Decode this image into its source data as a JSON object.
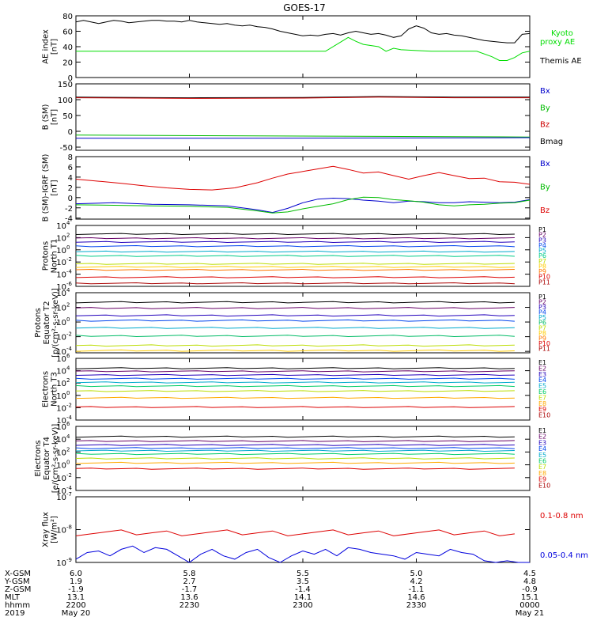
{
  "title": "GOES-17",
  "chart_data": [
    {
      "type": "line",
      "id": "ae",
      "ylabel": [
        "AE index",
        "[nT]"
      ],
      "ylim": [
        0,
        80
      ],
      "yticks": [
        [
          0,
          "0"
        ],
        [
          20,
          "20"
        ],
        [
          40,
          "40"
        ],
        [
          60,
          "60"
        ],
        [
          80,
          "80"
        ]
      ],
      "log": false,
      "series": [
        {
          "name": "Themis AE",
          "color": "#000000",
          "t": [
            0,
            2,
            4,
            6,
            8,
            10,
            12,
            14,
            16,
            18,
            20,
            22,
            24,
            26,
            28,
            30,
            32,
            34,
            36,
            38,
            40,
            42,
            44,
            46,
            48,
            50,
            52,
            54,
            56,
            58,
            60,
            62,
            64,
            66,
            68,
            70,
            72,
            74,
            76,
            78,
            80,
            82,
            84,
            86,
            88,
            90,
            92,
            94,
            96,
            98,
            100,
            102,
            104,
            106,
            108,
            110,
            112,
            114,
            116,
            118,
            120
          ],
          "v": [
            72,
            74,
            72,
            70,
            72,
            74,
            73,
            71,
            72,
            73,
            74,
            74,
            73,
            73,
            72,
            74,
            72,
            71,
            70,
            69,
            70,
            68,
            67,
            68,
            66,
            65,
            63,
            60,
            58,
            56,
            54,
            55,
            54,
            56,
            57,
            55,
            58,
            60,
            58,
            56,
            57,
            55,
            52,
            54,
            63,
            67,
            64,
            58,
            56,
            57,
            55,
            54,
            52,
            50,
            48,
            47,
            46,
            45,
            45,
            56,
            57
          ]
        },
        {
          "name": "Kyoto proxy AE",
          "color": "#00dd00",
          "t": [
            0,
            66,
            70,
            72,
            74,
            76,
            80,
            82,
            84,
            86,
            90,
            94,
            98,
            102,
            106,
            110,
            112,
            114,
            116,
            118,
            120
          ],
          "v": [
            34,
            34,
            46,
            52,
            47,
            43,
            40,
            34,
            38,
            36,
            35,
            34,
            34,
            34,
            34,
            27,
            22,
            22,
            26,
            32,
            34
          ]
        }
      ],
      "legend": [
        "Kyoto proxy AE",
        "Themis AE"
      ]
    },
    {
      "type": "line",
      "id": "bsm",
      "ylabel": [
        "B (SM)",
        "[nT]"
      ],
      "ylim": [
        -60,
        150
      ],
      "yticks": [
        [
          -50,
          "-50"
        ],
        [
          0,
          "0"
        ],
        [
          50,
          "50"
        ],
        [
          100,
          "100"
        ],
        [
          150,
          "150"
        ]
      ],
      "log": false,
      "series": [
        {
          "name": "Bmag",
          "color": "#000000",
          "t": [
            0,
            30,
            60,
            80,
            100,
            120
          ],
          "v": [
            108,
            106,
            107,
            110,
            108,
            108
          ]
        },
        {
          "name": "Bz",
          "color": "#cc0000",
          "t": [
            0,
            30,
            60,
            80,
            100,
            120
          ],
          "v": [
            106,
            104,
            105,
            108,
            106,
            106
          ]
        },
        {
          "name": "By",
          "color": "#00bb00",
          "t": [
            0,
            40,
            80,
            120
          ],
          "v": [
            -12,
            -14,
            -16,
            -18
          ]
        },
        {
          "name": "Bx",
          "color": "#0000cc",
          "t": [
            0,
            40,
            80,
            120
          ],
          "v": [
            -22,
            -22,
            -21,
            -20
          ]
        }
      ],
      "legend": [
        "Bx",
        "By",
        "Bz",
        "Bmag"
      ]
    },
    {
      "type": "line",
      "id": "bigrf",
      "ylabel": [
        "B (SM)-IGRF (SM)",
        "[nT]"
      ],
      "ylim": [
        -4.2,
        8
      ],
      "yticks": [
        [
          -4,
          "-4"
        ],
        [
          -2,
          "-2"
        ],
        [
          0,
          "0"
        ],
        [
          2,
          "2"
        ],
        [
          4,
          "4"
        ],
        [
          6,
          "6"
        ],
        [
          8,
          "8"
        ]
      ],
      "log": false,
      "series": [
        {
          "name": "Bz",
          "color": "#dd0000",
          "t": [
            0,
            6,
            12,
            18,
            24,
            30,
            36,
            42,
            48,
            52,
            56,
            60,
            64,
            68,
            72,
            76,
            80,
            84,
            88,
            92,
            96,
            100,
            104,
            108,
            112,
            116,
            120
          ],
          "v": [
            3.6,
            3.2,
            2.8,
            2.3,
            1.9,
            1.6,
            1.5,
            1.9,
            2.9,
            3.8,
            4.6,
            5.1,
            5.6,
            6.1,
            5.5,
            4.8,
            5.0,
            4.3,
            3.6,
            4.3,
            4.9,
            4.3,
            3.7,
            3.8,
            3.1,
            3.0,
            2.6
          ]
        },
        {
          "name": "Bx",
          "color": "#0000cc",
          "t": [
            0,
            10,
            20,
            30,
            40,
            48,
            52,
            56,
            60,
            64,
            68,
            72,
            76,
            80,
            84,
            88,
            92,
            96,
            100,
            104,
            108,
            112,
            116,
            120
          ],
          "v": [
            -1.2,
            -1.0,
            -1.3,
            -1.4,
            -1.6,
            -2.4,
            -2.9,
            -2.1,
            -1.0,
            -0.3,
            -0.1,
            -0.2,
            -0.5,
            -0.7,
            -1.0,
            -0.7,
            -0.8,
            -1.0,
            -1.0,
            -0.8,
            -0.9,
            -1.0,
            -0.9,
            -0.4
          ]
        },
        {
          "name": "By",
          "color": "#00bb00",
          "t": [
            0,
            10,
            20,
            30,
            40,
            48,
            52,
            56,
            60,
            64,
            68,
            72,
            76,
            80,
            84,
            88,
            92,
            96,
            100,
            104,
            108,
            112,
            116,
            120
          ],
          "v": [
            -1.4,
            -1.5,
            -1.6,
            -1.7,
            -1.9,
            -2.6,
            -3.0,
            -2.8,
            -2.2,
            -1.7,
            -1.2,
            -0.4,
            0.1,
            0.0,
            -0.4,
            -0.6,
            -0.9,
            -1.4,
            -1.6,
            -1.4,
            -1.3,
            -1.1,
            -1.0,
            -0.5
          ]
        }
      ],
      "legend": [
        "Bx",
        "By",
        "Bz"
      ]
    },
    {
      "type": "line",
      "id": "pn",
      "ylabel": [
        "Protons",
        "North T1"
      ],
      "ylim": [
        -6,
        4
      ],
      "yticks": [
        [
          -6,
          "10",
          "-6"
        ],
        [
          -4,
          "10",
          "-4"
        ],
        [
          -2,
          "10",
          "-2"
        ],
        [
          0,
          "10",
          "0"
        ],
        [
          2,
          "10",
          "2"
        ],
        [
          4,
          "10",
          "4"
        ]
      ],
      "log": true,
      "series": [
        {
          "name": "P1",
          "color": "#000000",
          "level": 2.6
        },
        {
          "name": "P2",
          "color": "#660066",
          "level": 1.9
        },
        {
          "name": "P3",
          "color": "#2200bb",
          "level": 1.3
        },
        {
          "name": "P4",
          "color": "#0044ee",
          "level": 0.6
        },
        {
          "name": "P5",
          "color": "#00aacc",
          "level": -0.3
        },
        {
          "name": "P6",
          "color": "#00cc88",
          "level": -1.0
        },
        {
          "name": "P7",
          "color": "#bbdd00",
          "level": -2.3
        },
        {
          "name": "P8",
          "color": "#ffcc00",
          "level": -2.8
        },
        {
          "name": "P9",
          "color": "#ff7700",
          "level": -3.3
        },
        {
          "name": "P10",
          "color": "#dd0000",
          "level": -4.5
        },
        {
          "name": "P11",
          "color": "#aa0000",
          "level": -5.5
        }
      ],
      "legend": [
        "P1",
        "P2",
        "P3",
        "P4",
        "P5",
        "P6",
        "P7",
        "P8",
        "P9",
        "P10",
        "P11"
      ]
    },
    {
      "type": "line",
      "id": "pe",
      "ylabel": [
        "Protons",
        "Equator T2",
        "[p/(cm²-s-sr-keV)]"
      ],
      "ylim": [
        -4.2,
        4
      ],
      "yticks": [
        [
          -4,
          "10",
          "-4"
        ],
        [
          -2,
          "10",
          "-2"
        ],
        [
          0,
          "10",
          "0"
        ],
        [
          2,
          "10",
          "2"
        ],
        [
          4,
          "10",
          "4"
        ]
      ],
      "log": true,
      "series": [
        {
          "name": "P1",
          "color": "#000000",
          "level": 2.7
        },
        {
          "name": "P2",
          "color": "#660066",
          "level": 1.9
        },
        {
          "name": "P3",
          "color": "#2200bb",
          "level": 0.9
        },
        {
          "name": "P4",
          "color": "#0044ee",
          "level": 0.2
        },
        {
          "name": "P5",
          "color": "#00aacc",
          "level": -0.8
        },
        {
          "name": "P6",
          "color": "#00bb66",
          "level": -1.9
        },
        {
          "name": "P7",
          "color": "#bbdd00",
          "level": -3.2
        },
        {
          "name": "P8",
          "color": "#ffcc00",
          "level": -3.9
        }
      ],
      "legend": [
        "P1",
        "P2",
        "P3",
        "P4",
        "P5",
        "P6",
        "P7",
        "P8",
        "P9",
        "P10",
        "P11"
      ],
      "legend_colors": [
        "#000000",
        "#660066",
        "#2200bb",
        "#0044ee",
        "#00aacc",
        "#00bb66",
        "#bbdd00",
        "#ffcc00",
        "#ff7700",
        "#dd0000",
        "#aa0000"
      ]
    },
    {
      "type": "line",
      "id": "en",
      "ylabel": [
        "Electrons",
        "North T3"
      ],
      "ylim": [
        -4,
        6
      ],
      "yticks": [
        [
          -4,
          "10",
          "-4"
        ],
        [
          -2,
          "10",
          "-2"
        ],
        [
          0,
          "10",
          "0"
        ],
        [
          2,
          "10",
          "2"
        ],
        [
          4,
          "10",
          "4"
        ],
        [
          6,
          "10",
          "6"
        ]
      ],
      "log": true,
      "series": [
        {
          "name": "E1",
          "color": "#000000",
          "level": 4.4
        },
        {
          "name": "E2",
          "color": "#660066",
          "level": 3.9
        },
        {
          "name": "E3",
          "color": "#2200bb",
          "level": 3.3
        },
        {
          "name": "E4",
          "color": "#0044ee",
          "level": 2.7
        },
        {
          "name": "E5",
          "color": "#00aacc",
          "level": 2.1
        },
        {
          "name": "E6",
          "color": "#00cc66",
          "level": 1.5
        },
        {
          "name": "E7",
          "color": "#bbdd00",
          "level": 0.7
        },
        {
          "name": "E8",
          "color": "#ffaa00",
          "level": -0.4
        },
        {
          "name": "E9",
          "color": "#dd0000",
          "level": -1.9
        }
      ],
      "legend": [
        "E1",
        "E2",
        "E3",
        "E4",
        "E5",
        "E6",
        "E7",
        "E8",
        "E9",
        "E10"
      ],
      "legend_colors": [
        "#000000",
        "#660066",
        "#2200bb",
        "#0044ee",
        "#00aacc",
        "#00cc66",
        "#bbdd00",
        "#ffaa00",
        "#dd0000",
        "#aa0000"
      ]
    },
    {
      "type": "line",
      "id": "ee",
      "ylabel": [
        "Electrons",
        "Equator T4",
        "[e/(cm²-s-sr-keV)]"
      ],
      "ylim": [
        -4,
        6
      ],
      "yticks": [
        [
          -4,
          "10",
          "-4"
        ],
        [
          -2,
          "10",
          "-2"
        ],
        [
          0,
          "10",
          "0"
        ],
        [
          2,
          "10",
          "2"
        ],
        [
          4,
          "10",
          "4"
        ],
        [
          6,
          "10",
          "6"
        ]
      ],
      "log": true,
      "series": [
        {
          "name": "E1",
          "color": "#000000",
          "level": 4.4
        },
        {
          "name": "E2",
          "color": "#660066",
          "level": 3.7
        },
        {
          "name": "E3",
          "color": "#2200bb",
          "level": 3.1
        },
        {
          "name": "E4",
          "color": "#0044ee",
          "level": 2.6
        },
        {
          "name": "E5",
          "color": "#00aacc",
          "level": 2.2
        },
        {
          "name": "E6",
          "color": "#00cc66",
          "level": 1.7
        },
        {
          "name": "E7",
          "color": "#bbdd00",
          "level": 1.0
        },
        {
          "name": "E8",
          "color": "#ffaa00",
          "level": 0.3
        },
        {
          "name": "E9",
          "color": "#dd0000",
          "level": -0.6
        }
      ],
      "legend": [
        "E1",
        "E2",
        "E3",
        "E4",
        "E5",
        "E6",
        "E7",
        "E8",
        "E9",
        "E10"
      ],
      "legend_colors": [
        "#000000",
        "#660066",
        "#2200bb",
        "#0044ee",
        "#00aacc",
        "#00cc66",
        "#bbdd00",
        "#ffaa00",
        "#dd0000",
        "#aa0000"
      ]
    },
    {
      "type": "line",
      "id": "xray",
      "ylabel": [
        "Xray flux",
        "[W/m²]"
      ],
      "ylim": [
        -9,
        -7
      ],
      "yticks": [
        [
          -9,
          "10",
          "-9"
        ],
        [
          -8,
          "10",
          "-8"
        ],
        [
          -7,
          "10",
          "-7"
        ]
      ],
      "log": true,
      "series": [
        {
          "name": "0.1-0.8 nm",
          "color": "#dd0000",
          "level": -8.1
        },
        {
          "name": "0.05-0.4 nm",
          "color": "#0000dd",
          "t": [
            0,
            3,
            6,
            9,
            12,
            15,
            18,
            21,
            24,
            27,
            30,
            33,
            36,
            39,
            42,
            45,
            48,
            51,
            54,
            57,
            60,
            63,
            66,
            69,
            72,
            75,
            78,
            81,
            84,
            87,
            90,
            93,
            96,
            99,
            102,
            105,
            108,
            111,
            114,
            117,
            120
          ],
          "v": [
            -8.9,
            -8.7,
            -8.65,
            -8.8,
            -8.6,
            -8.5,
            -8.7,
            -8.55,
            -8.6,
            -8.8,
            -9.0,
            -8.75,
            -8.6,
            -8.8,
            -8.9,
            -8.7,
            -8.6,
            -8.85,
            -9.0,
            -8.8,
            -8.65,
            -8.75,
            -8.6,
            -8.8,
            -8.55,
            -8.6,
            -8.7,
            -8.75,
            -8.8,
            -8.9,
            -8.7,
            -8.75,
            -8.8,
            -8.6,
            -8.7,
            -8.75,
            -8.95,
            -9.0,
            -8.95,
            -9.0,
            -9.0
          ]
        }
      ],
      "legend": [
        "0.1-0.8 nm",
        "0.05-0.4 nm"
      ]
    }
  ],
  "footer": {
    "row_labels": [
      "X-GSM",
      "Y-GSM",
      "Z-GSM",
      "MLT",
      "hhmm",
      "2019"
    ],
    "columns": [
      [
        "6.0",
        "1.9",
        "-1.9",
        "13.1",
        "2200",
        "May 20"
      ],
      [
        "5.8",
        "2.7",
        "-1.7",
        "13.6",
        "2230",
        ""
      ],
      [
        "5.5",
        "3.5",
        "-1.4",
        "14.1",
        "2300",
        ""
      ],
      [
        "5.0",
        "4.2",
        "-1.1",
        "14.6",
        "2330",
        ""
      ],
      [
        "4.5",
        "4.8",
        "-0.9",
        "15.1",
        "0000",
        "May 21"
      ]
    ]
  }
}
